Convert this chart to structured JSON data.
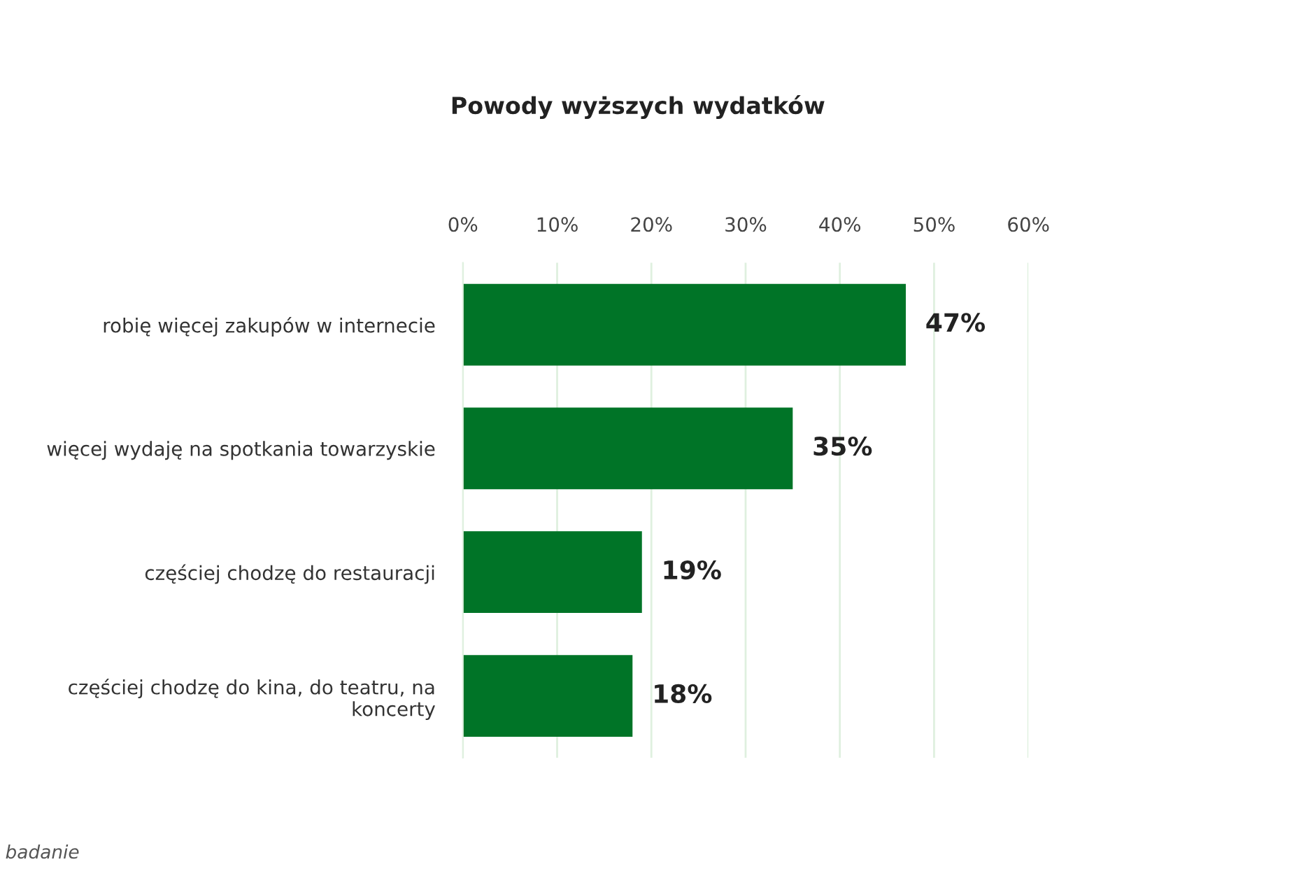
{
  "chart_data": {
    "type": "bar",
    "orientation": "horizontal",
    "title": "Powody wyższych wydatków",
    "categories": [
      "robię więcej zakupów w internecie",
      "więcej wydaję na spotkania towarzyskie",
      "częściej chodzę do restauracji",
      "częściej chodzę do kina, do teatru, na\nkoncerty"
    ],
    "values": [
      47,
      35,
      19,
      18
    ],
    "value_labels": [
      "47%",
      "35%",
      "19%",
      "18%"
    ],
    "color": "#007427",
    "xlim": [
      0,
      60
    ],
    "xticks": [
      {
        "value": 0,
        "label": "0%"
      },
      {
        "value": 10,
        "label": "10%"
      },
      {
        "value": 20,
        "label": "20%"
      },
      {
        "value": 30,
        "label": "30%"
      },
      {
        "value": 40,
        "label": "40%"
      },
      {
        "value": 50,
        "label": "50%"
      },
      {
        "value": 60,
        "label": "60%"
      }
    ],
    "grid": "x",
    "annotations": [
      "badanie"
    ]
  }
}
